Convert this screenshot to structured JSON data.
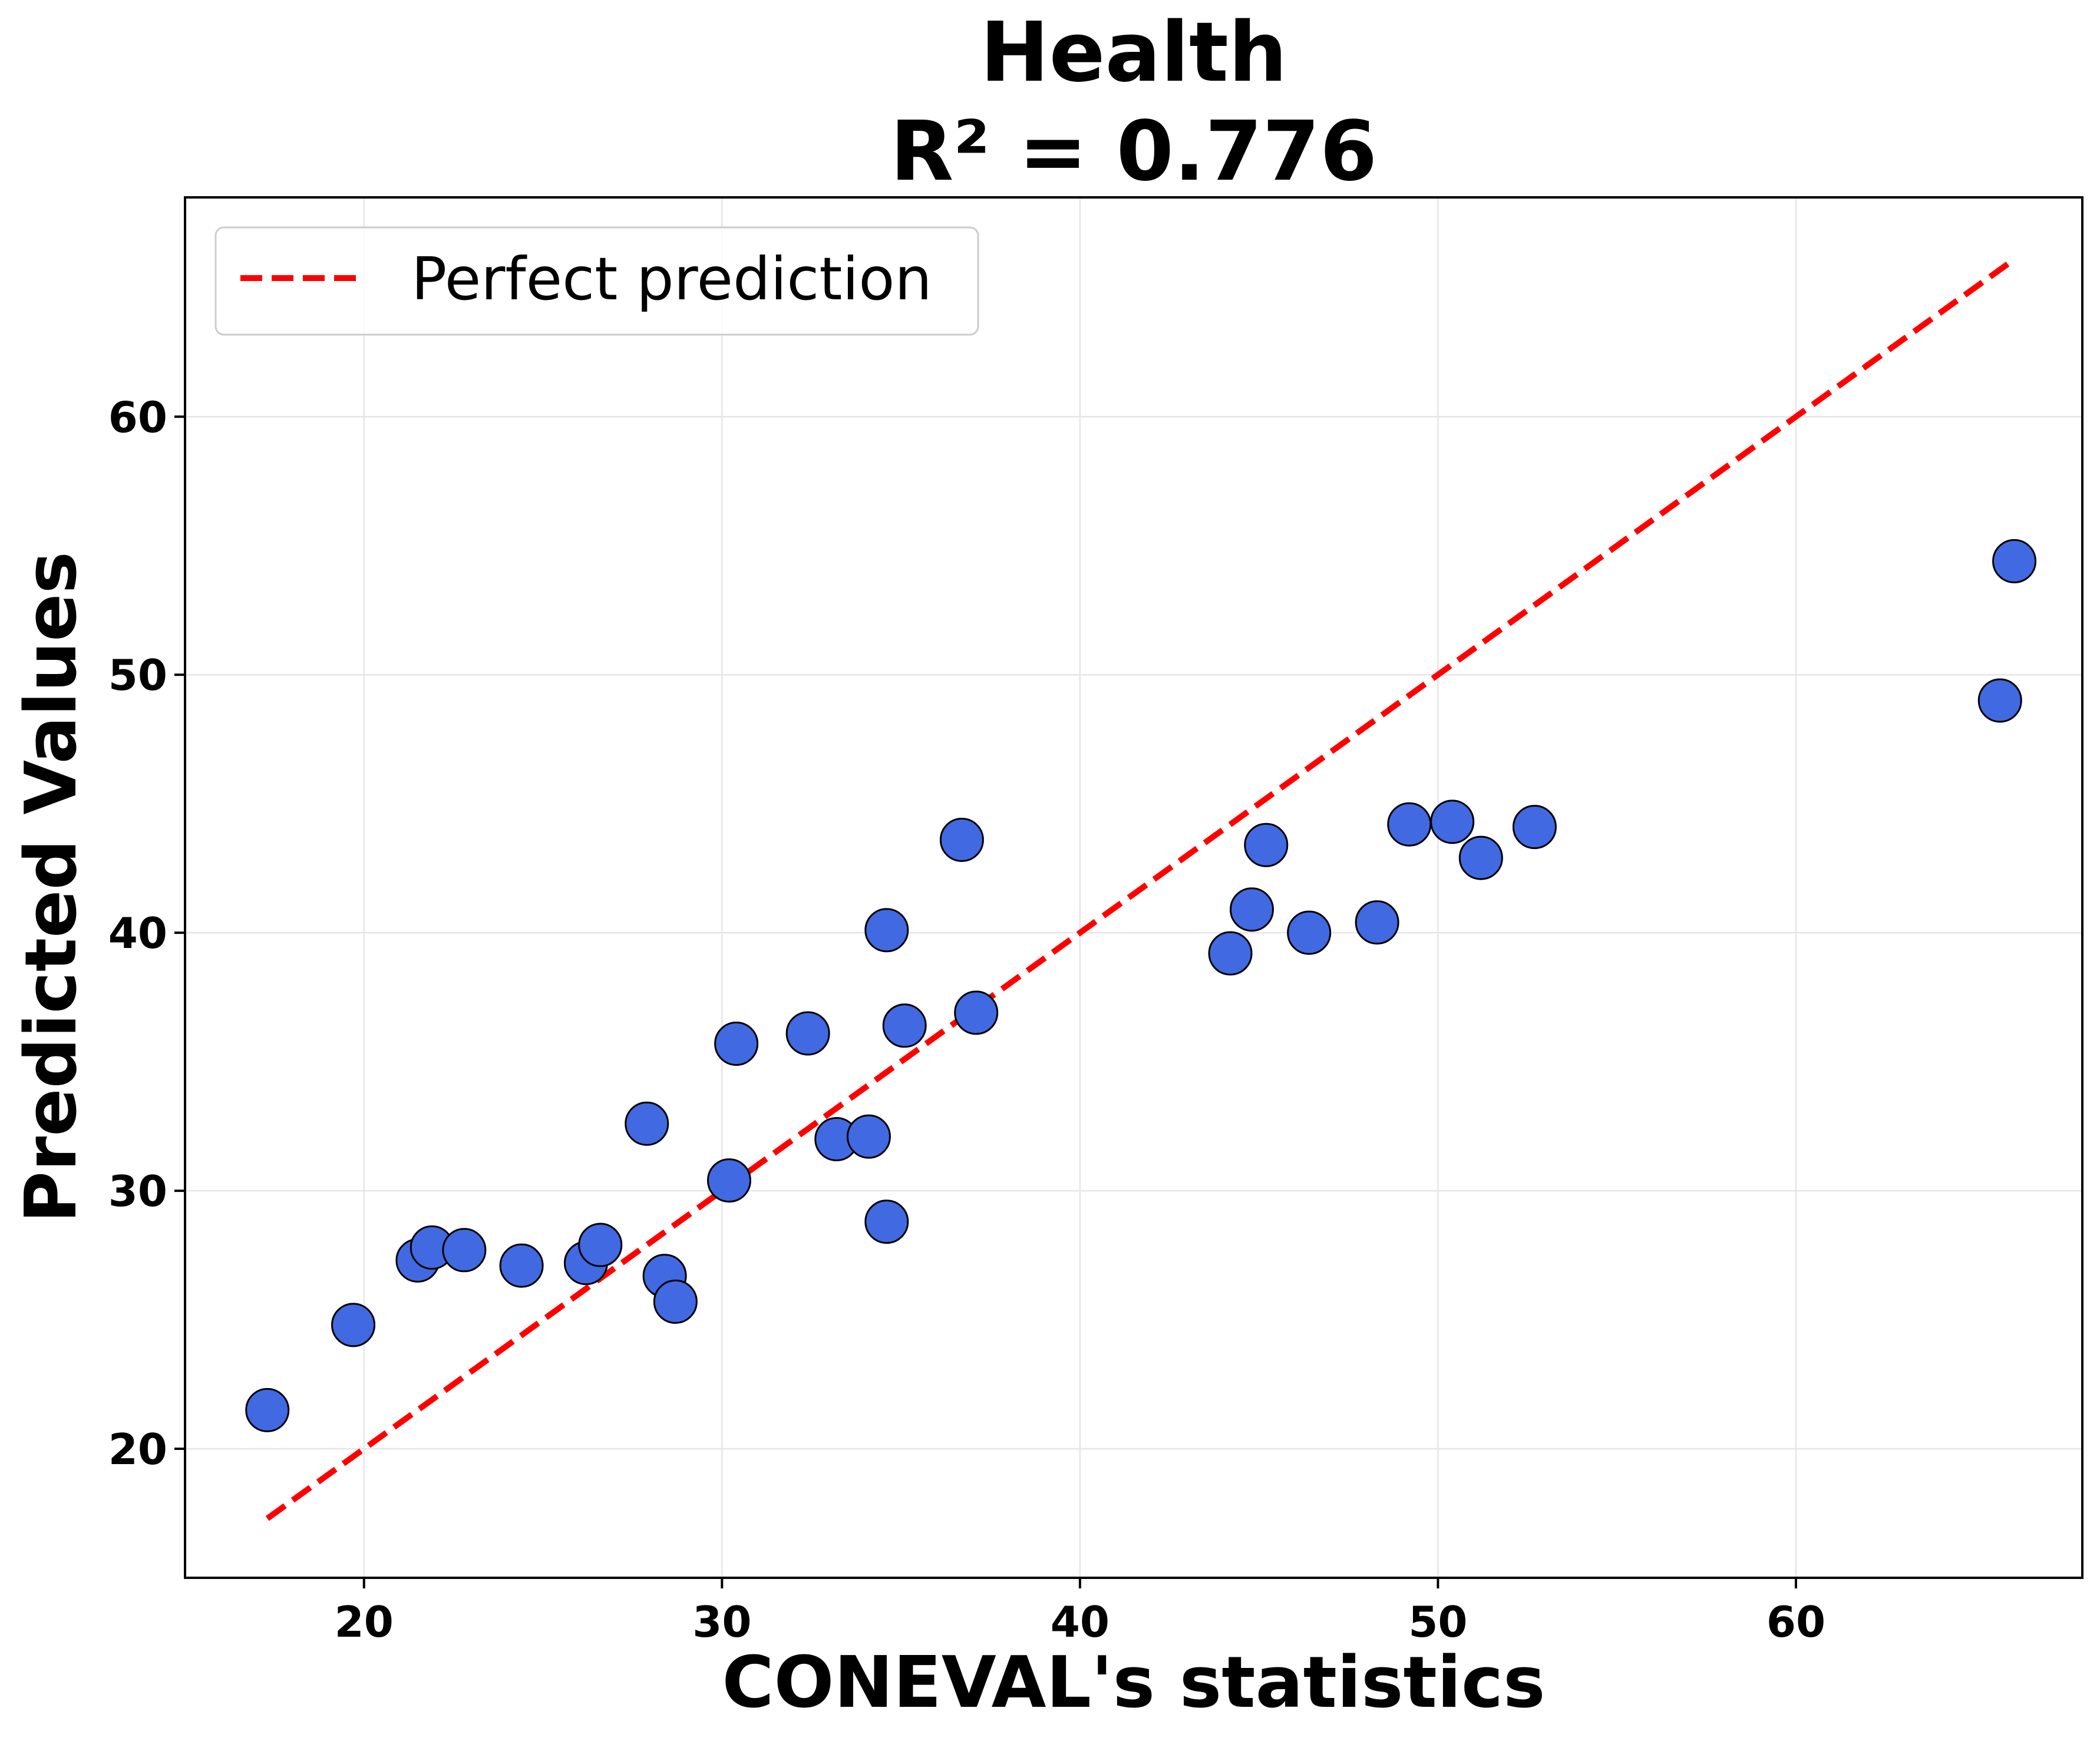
{
  "chart_data": {
    "type": "scatter",
    "title": "Health",
    "subtitle": "R² = 0.776",
    "xlabel": "CONEVAL's statistics",
    "ylabel": "Predicted Values",
    "xlim": [
      15,
      68
    ],
    "ylim": [
      15,
      68.5
    ],
    "xticks": [
      20,
      30,
      40,
      50,
      60
    ],
    "yticks": [
      20,
      30,
      40,
      50,
      60
    ],
    "xtick_labels": [
      "20",
      "30",
      "40",
      "50",
      "60"
    ],
    "ytick_labels": [
      "20",
      "30",
      "40",
      "50",
      "60"
    ],
    "grid": true,
    "legend_position": "top-left",
    "point_color": "#4169e1",
    "point_edge_color": "#000000",
    "line_color": "#ff0000",
    "series": [
      {
        "name": "",
        "kind": "points",
        "points": [
          {
            "x": 17.3,
            "y": 21.5
          },
          {
            "x": 19.7,
            "y": 24.8
          },
          {
            "x": 21.5,
            "y": 27.3
          },
          {
            "x": 21.9,
            "y": 27.8
          },
          {
            "x": 22.8,
            "y": 27.7
          },
          {
            "x": 24.4,
            "y": 27.1
          },
          {
            "x": 26.2,
            "y": 27.2
          },
          {
            "x": 26.6,
            "y": 27.9
          },
          {
            "x": 27.9,
            "y": 32.6
          },
          {
            "x": 28.4,
            "y": 26.7
          },
          {
            "x": 28.7,
            "y": 25.7
          },
          {
            "x": 30.2,
            "y": 30.4
          },
          {
            "x": 30.4,
            "y": 35.7
          },
          {
            "x": 32.4,
            "y": 36.1
          },
          {
            "x": 33.2,
            "y": 32.0
          },
          {
            "x": 34.1,
            "y": 32.1
          },
          {
            "x": 34.6,
            "y": 28.8
          },
          {
            "x": 34.6,
            "y": 40.1
          },
          {
            "x": 35.1,
            "y": 36.4
          },
          {
            "x": 36.7,
            "y": 43.6
          },
          {
            "x": 37.1,
            "y": 36.9
          },
          {
            "x": 44.2,
            "y": 39.2
          },
          {
            "x": 44.8,
            "y": 40.9
          },
          {
            "x": 45.2,
            "y": 43.4
          },
          {
            "x": 46.4,
            "y": 40.0
          },
          {
            "x": 48.3,
            "y": 40.4
          },
          {
            "x": 49.2,
            "y": 44.2
          },
          {
            "x": 50.4,
            "y": 44.3
          },
          {
            "x": 51.2,
            "y": 42.9
          },
          {
            "x": 52.7,
            "y": 44.1
          },
          {
            "x": 65.7,
            "y": 49.0
          },
          {
            "x": 66.1,
            "y": 54.4
          }
        ]
      },
      {
        "name": "Perfect prediction",
        "kind": "line",
        "points": [
          {
            "x": 17.3,
            "y": 17.3
          },
          {
            "x": 66.1,
            "y": 66.1
          }
        ]
      }
    ]
  }
}
